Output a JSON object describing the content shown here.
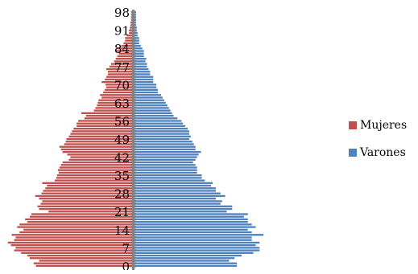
{
  "chart_data": {
    "type": "bar",
    "orientation": "horizontal",
    "subtype": "population-pyramid",
    "title": "",
    "xlabel": "",
    "ylabel": "",
    "ylim": [
      0,
      99
    ],
    "tick_labels": [
      "0",
      "7",
      "14",
      "21",
      "28",
      "35",
      "42",
      "49",
      "56",
      "63",
      "70",
      "77",
      "84",
      "91",
      "98"
    ],
    "grid": false,
    "legend_position": "right",
    "series": [
      {
        "name": "Mujeres",
        "color": "#c0504d",
        "values": [
          124,
          127,
          120,
          132,
          135,
          143,
          152,
          150,
          156,
          160,
          152,
          150,
          155,
          145,
          140,
          148,
          145,
          135,
          138,
          132,
          130,
          108,
          120,
          122,
          118,
          116,
          120,
          125,
          117,
          115,
          112,
          110,
          116,
          100,
          98,
          97,
          95,
          96,
          94,
          92,
          90,
          82,
          80,
          84,
          90,
          92,
          94,
          88,
          86,
          85,
          82,
          80,
          78,
          76,
          72,
          72,
          70,
          62,
          60,
          66,
          50,
          48,
          46,
          45,
          44,
          40,
          42,
          38,
          36,
          34,
          35,
          40,
          36,
          34,
          32,
          32,
          34,
          30,
          28,
          24,
          22,
          20,
          18,
          22,
          20,
          15,
          12,
          10,
          10,
          8,
          5,
          5,
          4,
          3,
          3,
          2,
          2,
          2,
          2
        ]
      },
      {
        "name": "Varones",
        "color": "#4f81bd",
        "values": [
          131,
          131,
          121,
          128,
          137,
          152,
          160,
          160,
          155,
          160,
          150,
          150,
          165,
          150,
          145,
          155,
          150,
          145,
          145,
          140,
          145,
          118,
          125,
          125,
          110,
          112,
          104,
          116,
          110,
          104,
          104,
          98,
          100,
          90,
          86,
          86,
          80,
          80,
          80,
          78,
          75,
          78,
          80,
          82,
          85,
          78,
          78,
          76,
          74,
          70,
          72,
          70,
          70,
          68,
          65,
          62,
          60,
          55,
          50,
          48,
          46,
          44,
          42,
          40,
          38,
          36,
          34,
          30,
          30,
          28,
          28,
          24,
          24,
          24,
          20,
          20,
          18,
          16,
          16,
          14,
          15,
          12,
          12,
          12,
          10,
          8,
          6,
          6,
          6,
          4,
          4,
          3,
          3,
          2,
          2,
          2,
          2,
          2,
          2
        ]
      }
    ]
  }
}
